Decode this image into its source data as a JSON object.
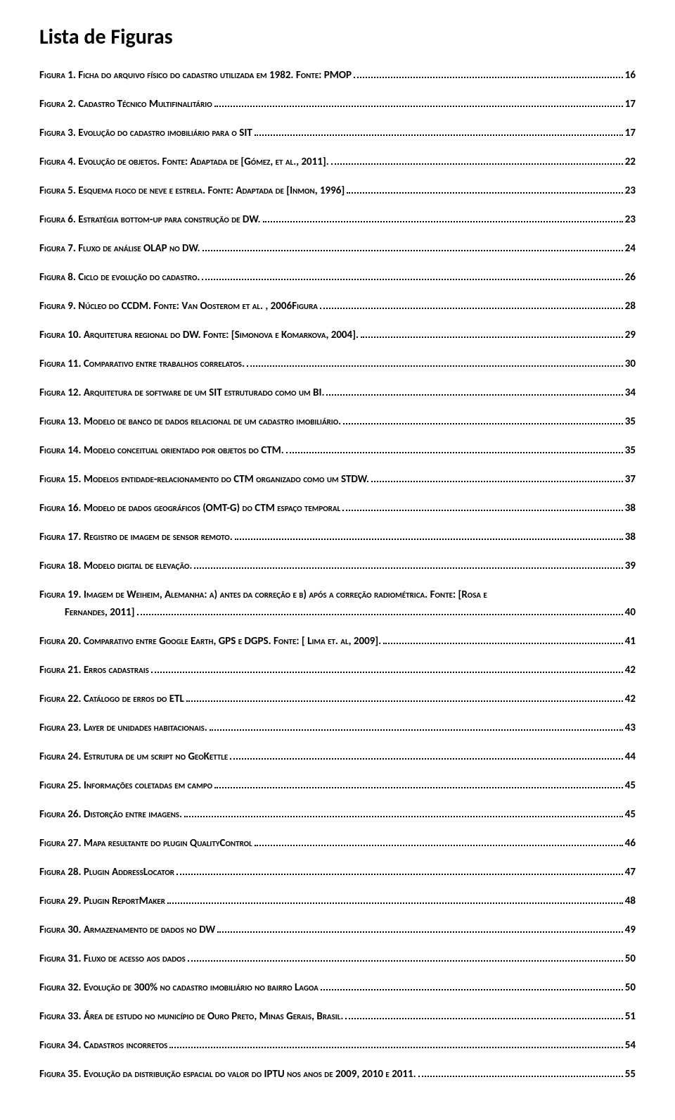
{
  "title": "Lista de Figuras",
  "text_color": "#000000",
  "background_color": "#ffffff",
  "font_family": "Calibri",
  "title_fontsize": 30,
  "entry_fontsize": 15,
  "entry_font_variant": "small-caps",
  "entry_font_weight": 700,
  "entries": [
    {
      "label": "Figura 1. Ficha do arquivo físico do cadastro utilizada em 1982. Fonte: PMOP",
      "page": "16"
    },
    {
      "label": "Figura 2. Cadastro Técnico Multifinalitário",
      "page": "17"
    },
    {
      "label": "Figura 3. Evolução do cadastro imobiliário para o SIT",
      "page": "17"
    },
    {
      "label": "Figura 4. Evolução de objetos. Fonte: Adaptada de [Gómez, et al., 2011].",
      "page": "22"
    },
    {
      "label": "Figura 5. Esquema floco de neve e estrela. Fonte: Adaptada de [Inmon, 1996]",
      "page": "23"
    },
    {
      "label": "Figura 6. Estratégia bottom-up para construção de DW.",
      "page": "23"
    },
    {
      "label": "Figura 7. Fluxo de análise OLAP no DW. ",
      "page": "24"
    },
    {
      "label": "Figura 8. Ciclo de evolução do cadastro. ",
      "page": "26"
    },
    {
      "label": "Figura 9. Núcleo do CCDM. Fonte: Van Oosterom et al. , 2006Figura",
      "page": "28"
    },
    {
      "label": "Figura 10. Arquitetura regional do DW. Fonte: [Simonova e Komarkova, 2004].",
      "page": "29"
    },
    {
      "label": "Figura 11. Comparativo entre trabalhos correlatos. ",
      "page": "30"
    },
    {
      "label": "Figura 12. Arquitetura de software de um SIT estruturado como um BI.",
      "page": "34"
    },
    {
      "label": "Figura 13. Modelo de banco de dados relacional de um cadastro imobiliário. ",
      "page": "35"
    },
    {
      "label": "Figura 14. Modelo conceitual orientado por objetos do CTM.",
      "page": "35"
    },
    {
      "label": "Figura 15. Modelos entidade-relacionamento do CTM organizado como um STDW. ",
      "page": "37"
    },
    {
      "label": "Figura 16. Modelo de dados geográficos (OMT-G) do CTM espaço temporal",
      "page": "38"
    },
    {
      "label": "Figura 17. Registro de imagem de sensor remoto. ",
      "page": "38"
    },
    {
      "label": "Figura 18. Modelo digital de elevação. ",
      "page": "39"
    },
    {
      "label": "Figura 19. Imagem de Weiheim, Alemanha: a) antes da correção e b) após a correção radiométrica. Fonte: [Rosa e",
      "continuation": "Fernandes, 2011]",
      "page": "40",
      "wrap": true
    },
    {
      "label": "Figura 20. Comparativo entre Google Earth, GPS e DGPS. Fonte: [ Lima et. al, 2009].",
      "page": "41"
    },
    {
      "label": "Figura 21. Erros cadastrais",
      "page": "42"
    },
    {
      "label": "Figura 22. Catálogo de erros do ETL",
      "page": "42"
    },
    {
      "label": "Figura 23. Layer de unidades habitacionais. ",
      "page": "43"
    },
    {
      "label": "Figura 24. Estrutura de um script no GeoKettle",
      "page": "44"
    },
    {
      "label": "Figura 25. Informações coletadas em campo",
      "page": "45"
    },
    {
      "label": "Figura 26. Distorção entre imagens. ",
      "page": "45"
    },
    {
      "label": "Figura 27. Mapa resultante do plugin QualityControl",
      "page": "46"
    },
    {
      "label": "Figura 28. Plugin AddressLocator",
      "page": "47"
    },
    {
      "label": "Figura 29. Plugin ReportMaker",
      "page": "48"
    },
    {
      "label": "Figura 30. Armazenamento de dados no DW",
      "page": "49"
    },
    {
      "label": "Figura 31. Fluxo de acesso aos dados",
      "page": "50"
    },
    {
      "label": "Figura 32. Evolução de 300% no cadastro imobiliário no bairro Lagoa",
      "page": "50"
    },
    {
      "label": "Figura 33. Área de estudo no município de Ouro Preto, Minas Gerais, Brasil. ",
      "page": "51"
    },
    {
      "label": "Figura 34. Cadastros incorretos",
      "page": "54"
    },
    {
      "label": "Figura 35. Evolução da distribuição espacial do valor do IPTU nos anos de 2009, 2010 e 2011.",
      "page": "55"
    }
  ]
}
